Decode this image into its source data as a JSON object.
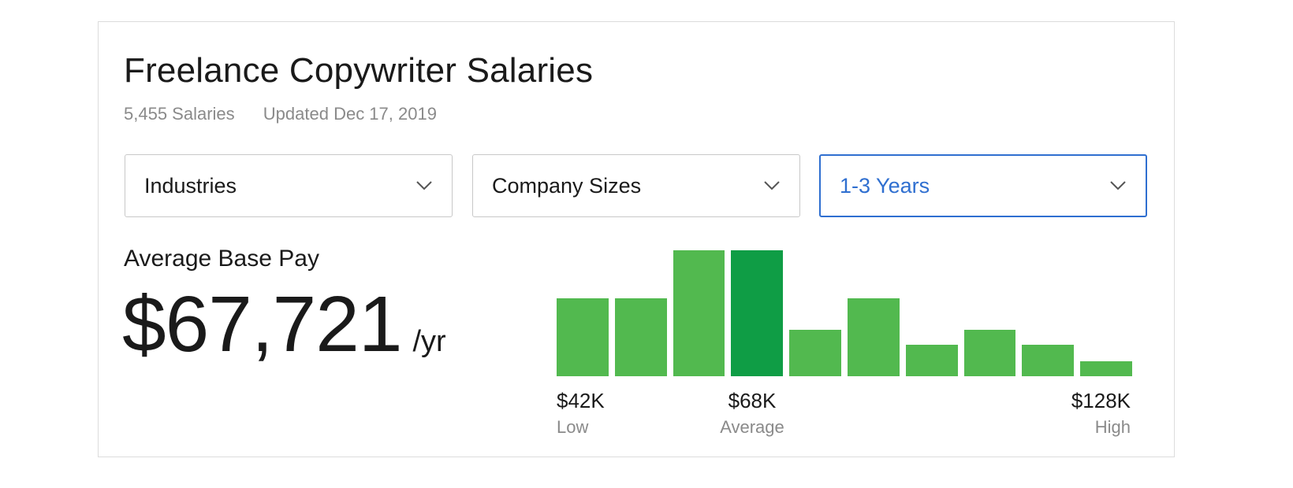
{
  "title": "Freelance Copywriter Salaries",
  "meta": {
    "count": "5,455 Salaries",
    "updated": "Updated Dec 17, 2019"
  },
  "filters": [
    {
      "label": "Industries",
      "active": false
    },
    {
      "label": "Company Sizes",
      "active": false
    },
    {
      "label": "1-3 Years",
      "active": true
    }
  ],
  "pay": {
    "label": "Average Base Pay",
    "amount": "$67,721",
    "unit": "/yr"
  },
  "histogram": {
    "bar_heights_relative": [
      0.62,
      0.62,
      1.0,
      1.0,
      0.37,
      0.62,
      0.25,
      0.37,
      0.25,
      0.12
    ],
    "highlight_index": 3,
    "colors": {
      "bar": "#52b94f",
      "highlight": "#0f9d45"
    },
    "low": {
      "value": "$42K",
      "label": "Low"
    },
    "average": {
      "value": "$68K",
      "label": "Average"
    },
    "high": {
      "value": "$128K",
      "label": "High"
    }
  },
  "colors": {
    "accent": "#2f6fd0",
    "border": "#dcdcdc",
    "muted_text": "#8a8a8a"
  }
}
